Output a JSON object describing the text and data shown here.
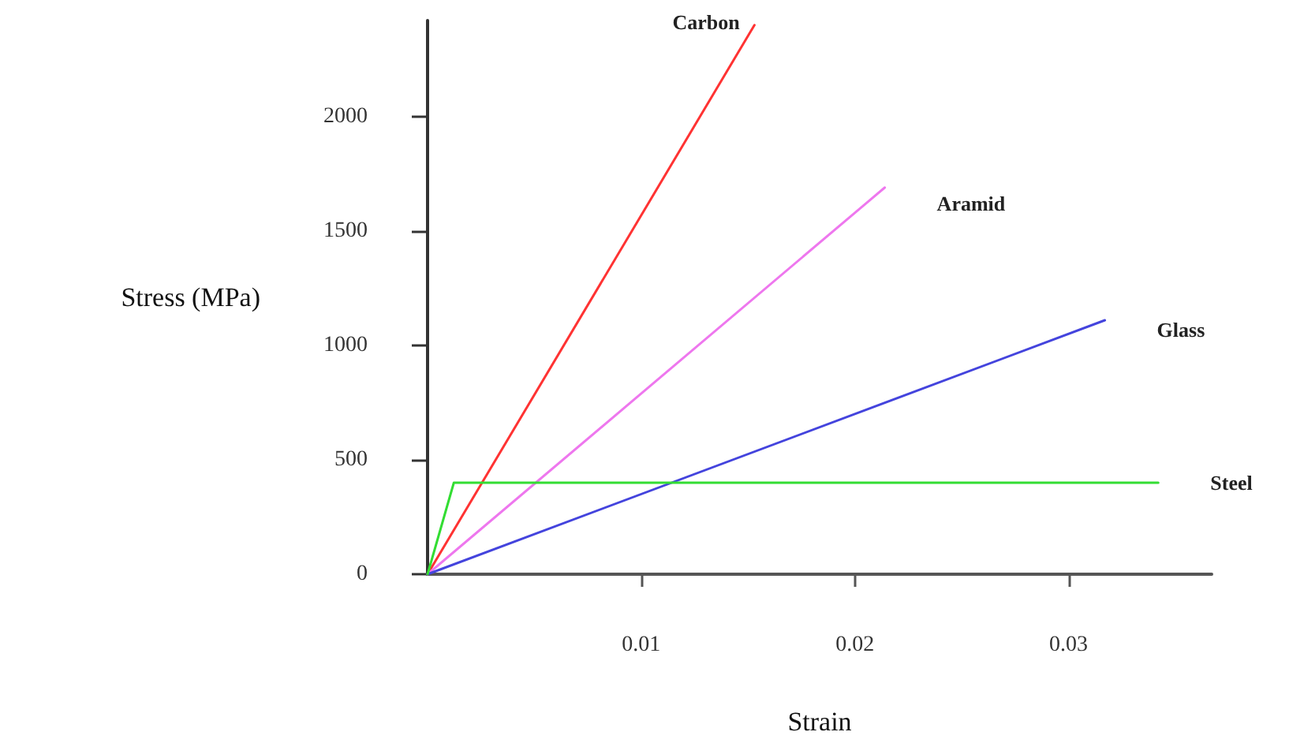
{
  "chart_data": {
    "type": "line",
    "xlabel": "Strain",
    "ylabel": "Stress (MPa)",
    "xlim": [
      0,
      0.0367
    ],
    "xticks": [
      0.01,
      0.02,
      0.03
    ],
    "ylim": [
      0,
      2420
    ],
    "yticks": [
      0,
      500,
      1000,
      1500,
      2000
    ],
    "grid": false,
    "legend": false,
    "marker": "none",
    "line_style": "solid",
    "series": [
      {
        "name": "Carbon",
        "color": "#ff3333",
        "x": [
          0,
          0.0153
        ],
        "values": [
          0,
          2400
        ]
      },
      {
        "name": "Aramid",
        "color": "#ee77ee",
        "x": [
          0,
          0.0214
        ],
        "values": [
          0,
          1690
        ]
      },
      {
        "name": "Glass",
        "color": "#4444dd",
        "x": [
          0,
          0.0317
        ],
        "values": [
          0,
          1110
        ]
      },
      {
        "name": "Steel",
        "color": "#33dd33",
        "x": [
          0,
          0.00123,
          0.0342
        ],
        "values": [
          0,
          400,
          400
        ]
      }
    ]
  }
}
